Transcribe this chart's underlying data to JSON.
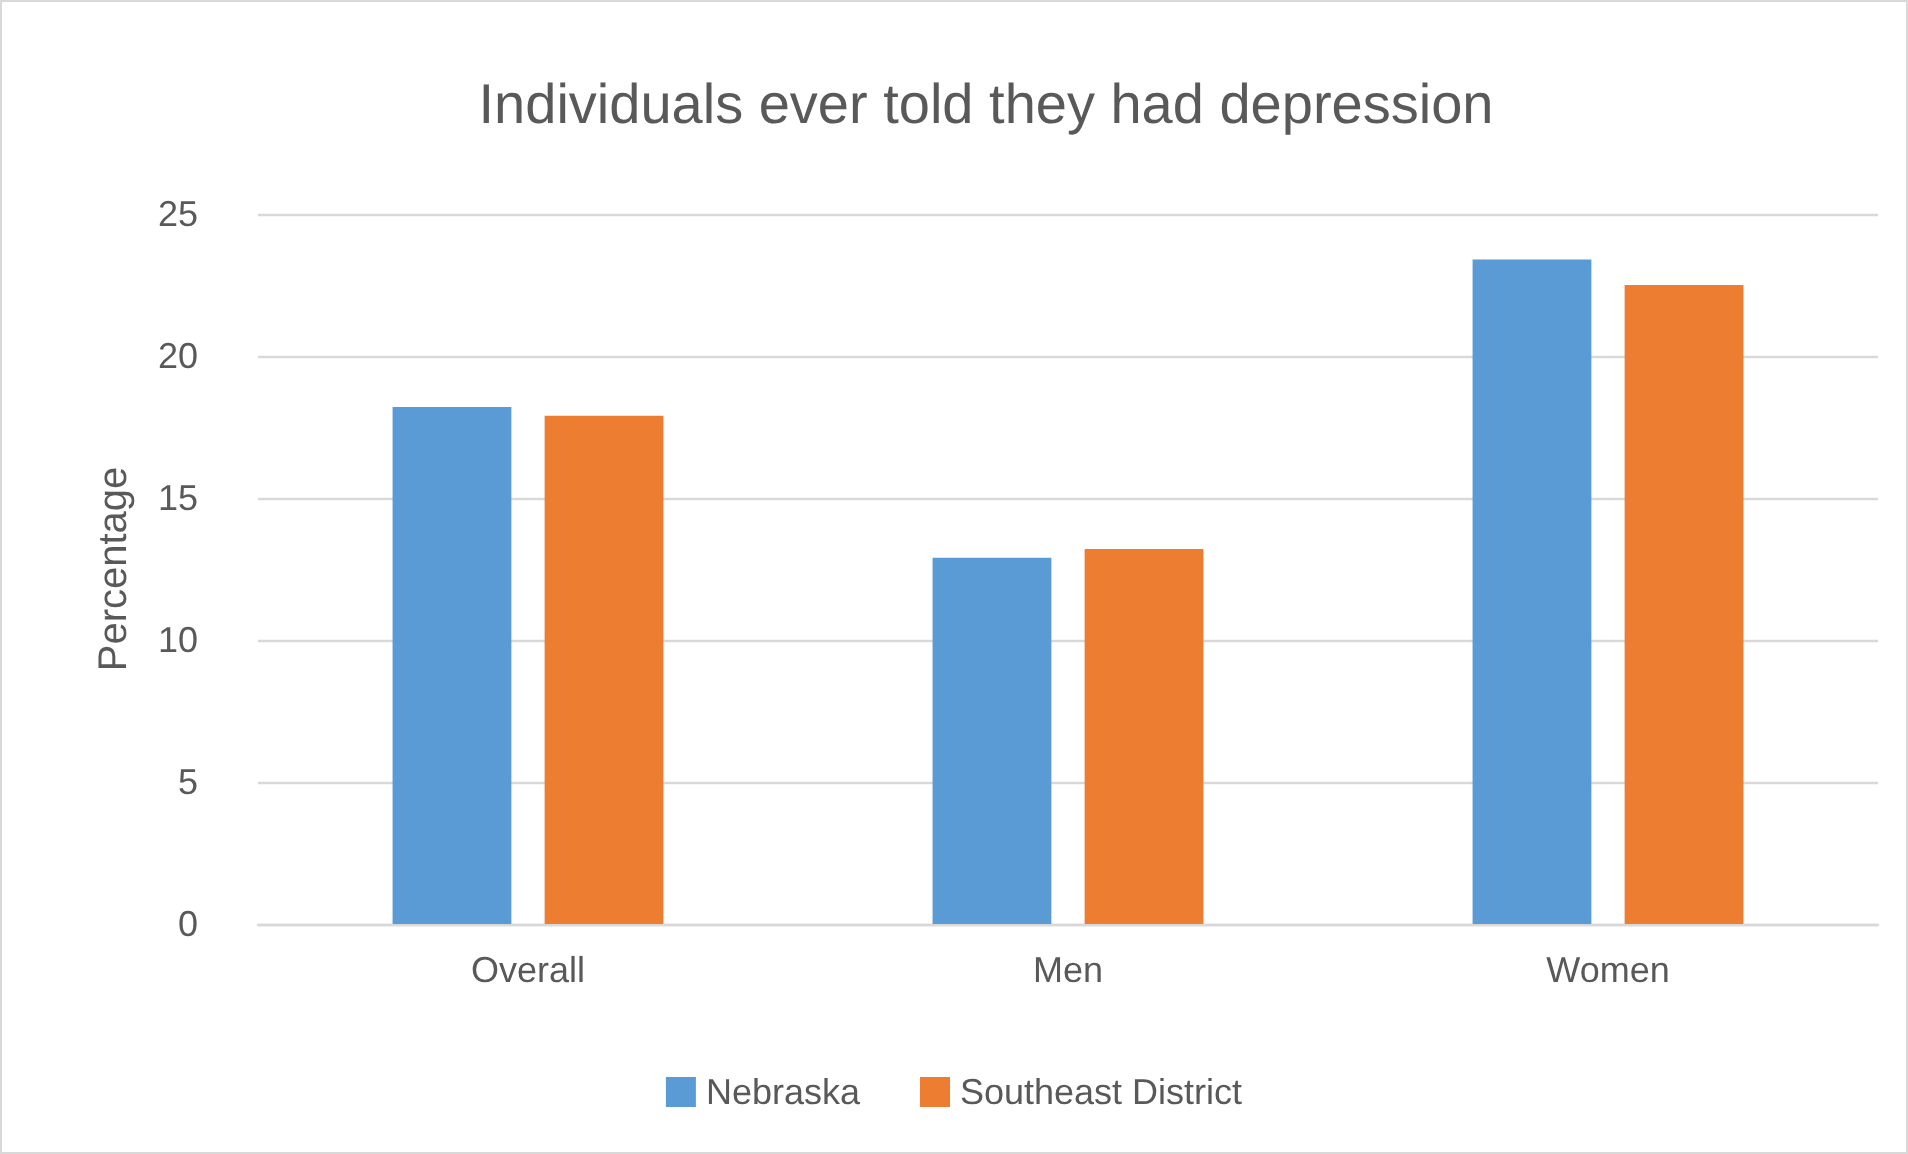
{
  "chart_data": {
    "type": "bar",
    "title": "Individuals ever told they had depression",
    "ylabel": "Percentage",
    "categories": [
      "Overall",
      "Men",
      "Women"
    ],
    "series": [
      {
        "name": "Nebraska",
        "color": "#5b9bd5",
        "values": [
          18.2,
          12.9,
          23.4
        ]
      },
      {
        "name": "Southeast District",
        "color": "#ed7d31",
        "values": [
          17.9,
          13.2,
          22.5
        ]
      }
    ],
    "ylim": [
      0,
      25
    ],
    "yticks": [
      0,
      5,
      10,
      15,
      20,
      25
    ],
    "grid": "y",
    "legend": "bottom"
  }
}
